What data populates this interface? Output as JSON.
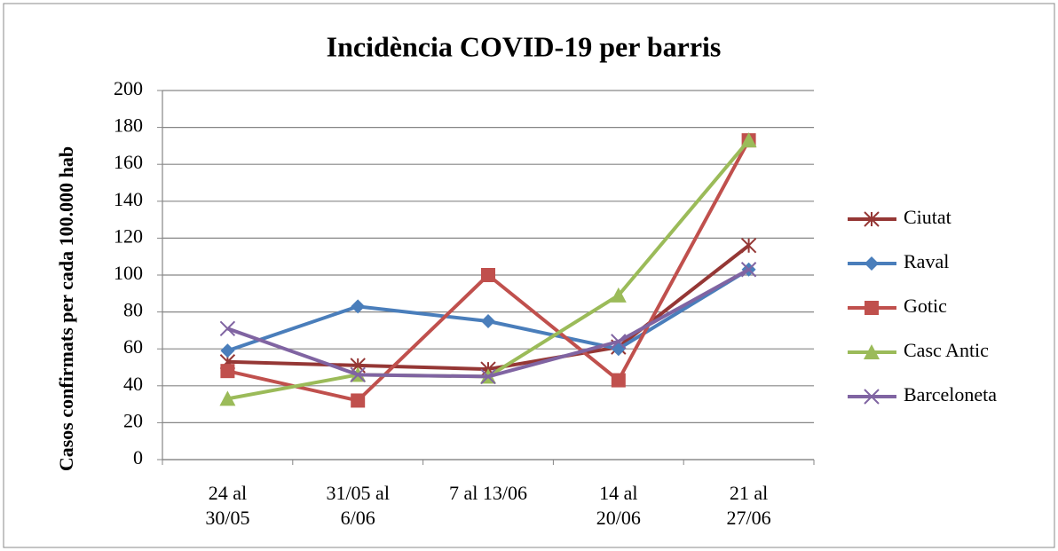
{
  "chart_data": {
    "type": "line",
    "title": "Incidència COVID-19 per barris",
    "y_label": "Casos confirmats per cada 100.000 hab",
    "categories": [
      "24 al\n30/05",
      "31/05 al\n6/06",
      "7 al 13/06",
      "14 al\n20/06",
      "21 al\n27/06"
    ],
    "series": [
      {
        "name": "Ciutat",
        "color": "#953735",
        "marker": "star",
        "values": [
          53,
          51,
          49,
          61,
          116
        ]
      },
      {
        "name": "Raval",
        "color": "#4a7ebb",
        "marker": "diamond",
        "values": [
          59,
          83,
          75,
          60,
          103
        ]
      },
      {
        "name": "Gotic",
        "color": "#c0504d",
        "marker": "square",
        "values": [
          48,
          32,
          100,
          43,
          173
        ]
      },
      {
        "name": "Casc Antic",
        "color": "#9bbb59",
        "marker": "triangle",
        "values": [
          33,
          46,
          45,
          89,
          173
        ]
      },
      {
        "name": "Barceloneta",
        "color": "#8064a2",
        "marker": "x",
        "values": [
          71,
          46,
          45,
          64,
          103
        ]
      }
    ],
    "ylim": [
      0,
      200
    ],
    "yticks": [
      0,
      20,
      40,
      60,
      80,
      100,
      120,
      140,
      160,
      180,
      200
    ],
    "grid": true,
    "legend": "right"
  }
}
